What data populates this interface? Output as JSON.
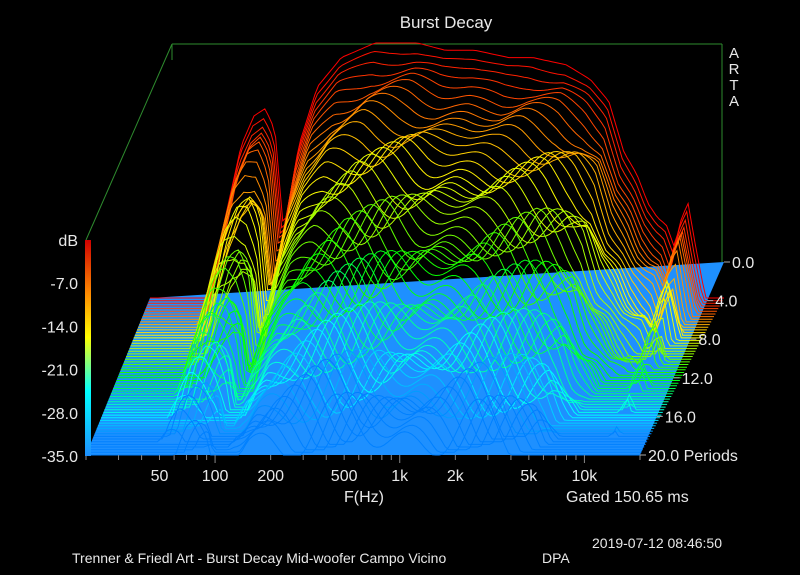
{
  "chart_data": {
    "type": "area",
    "title": "Burst Decay",
    "brand_letters": [
      "A",
      "R",
      "T",
      "A"
    ],
    "xlabel": "F(Hz)",
    "x_ticks": [
      {
        "value": 50,
        "label": "50"
      },
      {
        "value": 100,
        "label": "100"
      },
      {
        "value": 200,
        "label": "200"
      },
      {
        "value": 500,
        "label": "500"
      },
      {
        "value": 1000,
        "label": "1k"
      },
      {
        "value": 2000,
        "label": "2k"
      },
      {
        "value": 5000,
        "label": "5k"
      },
      {
        "value": 10000,
        "label": "10k"
      }
    ],
    "x_range": [
      20,
      20000
    ],
    "x_scale": "log",
    "zlabel": "dB",
    "z_range": [
      -35,
      0
    ],
    "z_ticks": [
      "-7.0",
      "-14.0",
      "-21.0",
      "-28.0",
      "-35.0"
    ],
    "ylabel": "Periods",
    "y_range": [
      0,
      20
    ],
    "y_ticks": [
      "0.0",
      "4.0",
      "8.0",
      "12.0",
      "16.0",
      "20.0"
    ],
    "periods_label": "Periods",
    "gated_text": "Gated 150.65 ms",
    "envelope": {
      "freq_hz": [
        20,
        40,
        60,
        70,
        80,
        90,
        100,
        120,
        150,
        200,
        300,
        500,
        700,
        1000,
        1500,
        2000,
        3000,
        4000,
        5000,
        6000,
        7000,
        8000,
        9000,
        10000,
        11000,
        12000,
        13000,
        14000,
        16000,
        20000
      ],
      "level_db": [
        -35,
        -35,
        -14,
        -10,
        -9,
        -12,
        -26,
        -14,
        -6,
        -2,
        0,
        0,
        -1,
        -1,
        -2,
        -2,
        -3,
        -5,
        -8,
        -15,
        -18,
        -22,
        -24,
        -25,
        -28,
        -24,
        -22,
        -27,
        -35,
        -35
      ]
    },
    "colors": {
      "background": "#000000",
      "floor": "#1e90ff",
      "frame": "#2e8b2e",
      "colorbar": [
        "#ff0000",
        "#ff8c00",
        "#ffff00",
        "#00ffff",
        "#00bfff"
      ]
    }
  },
  "footer": {
    "timestamp": "2019-07-12   08:46:50",
    "caption": "Trenner & Friedl Art - Burst Decay Mid-woofer Campo Vicino",
    "method": "DPA"
  }
}
